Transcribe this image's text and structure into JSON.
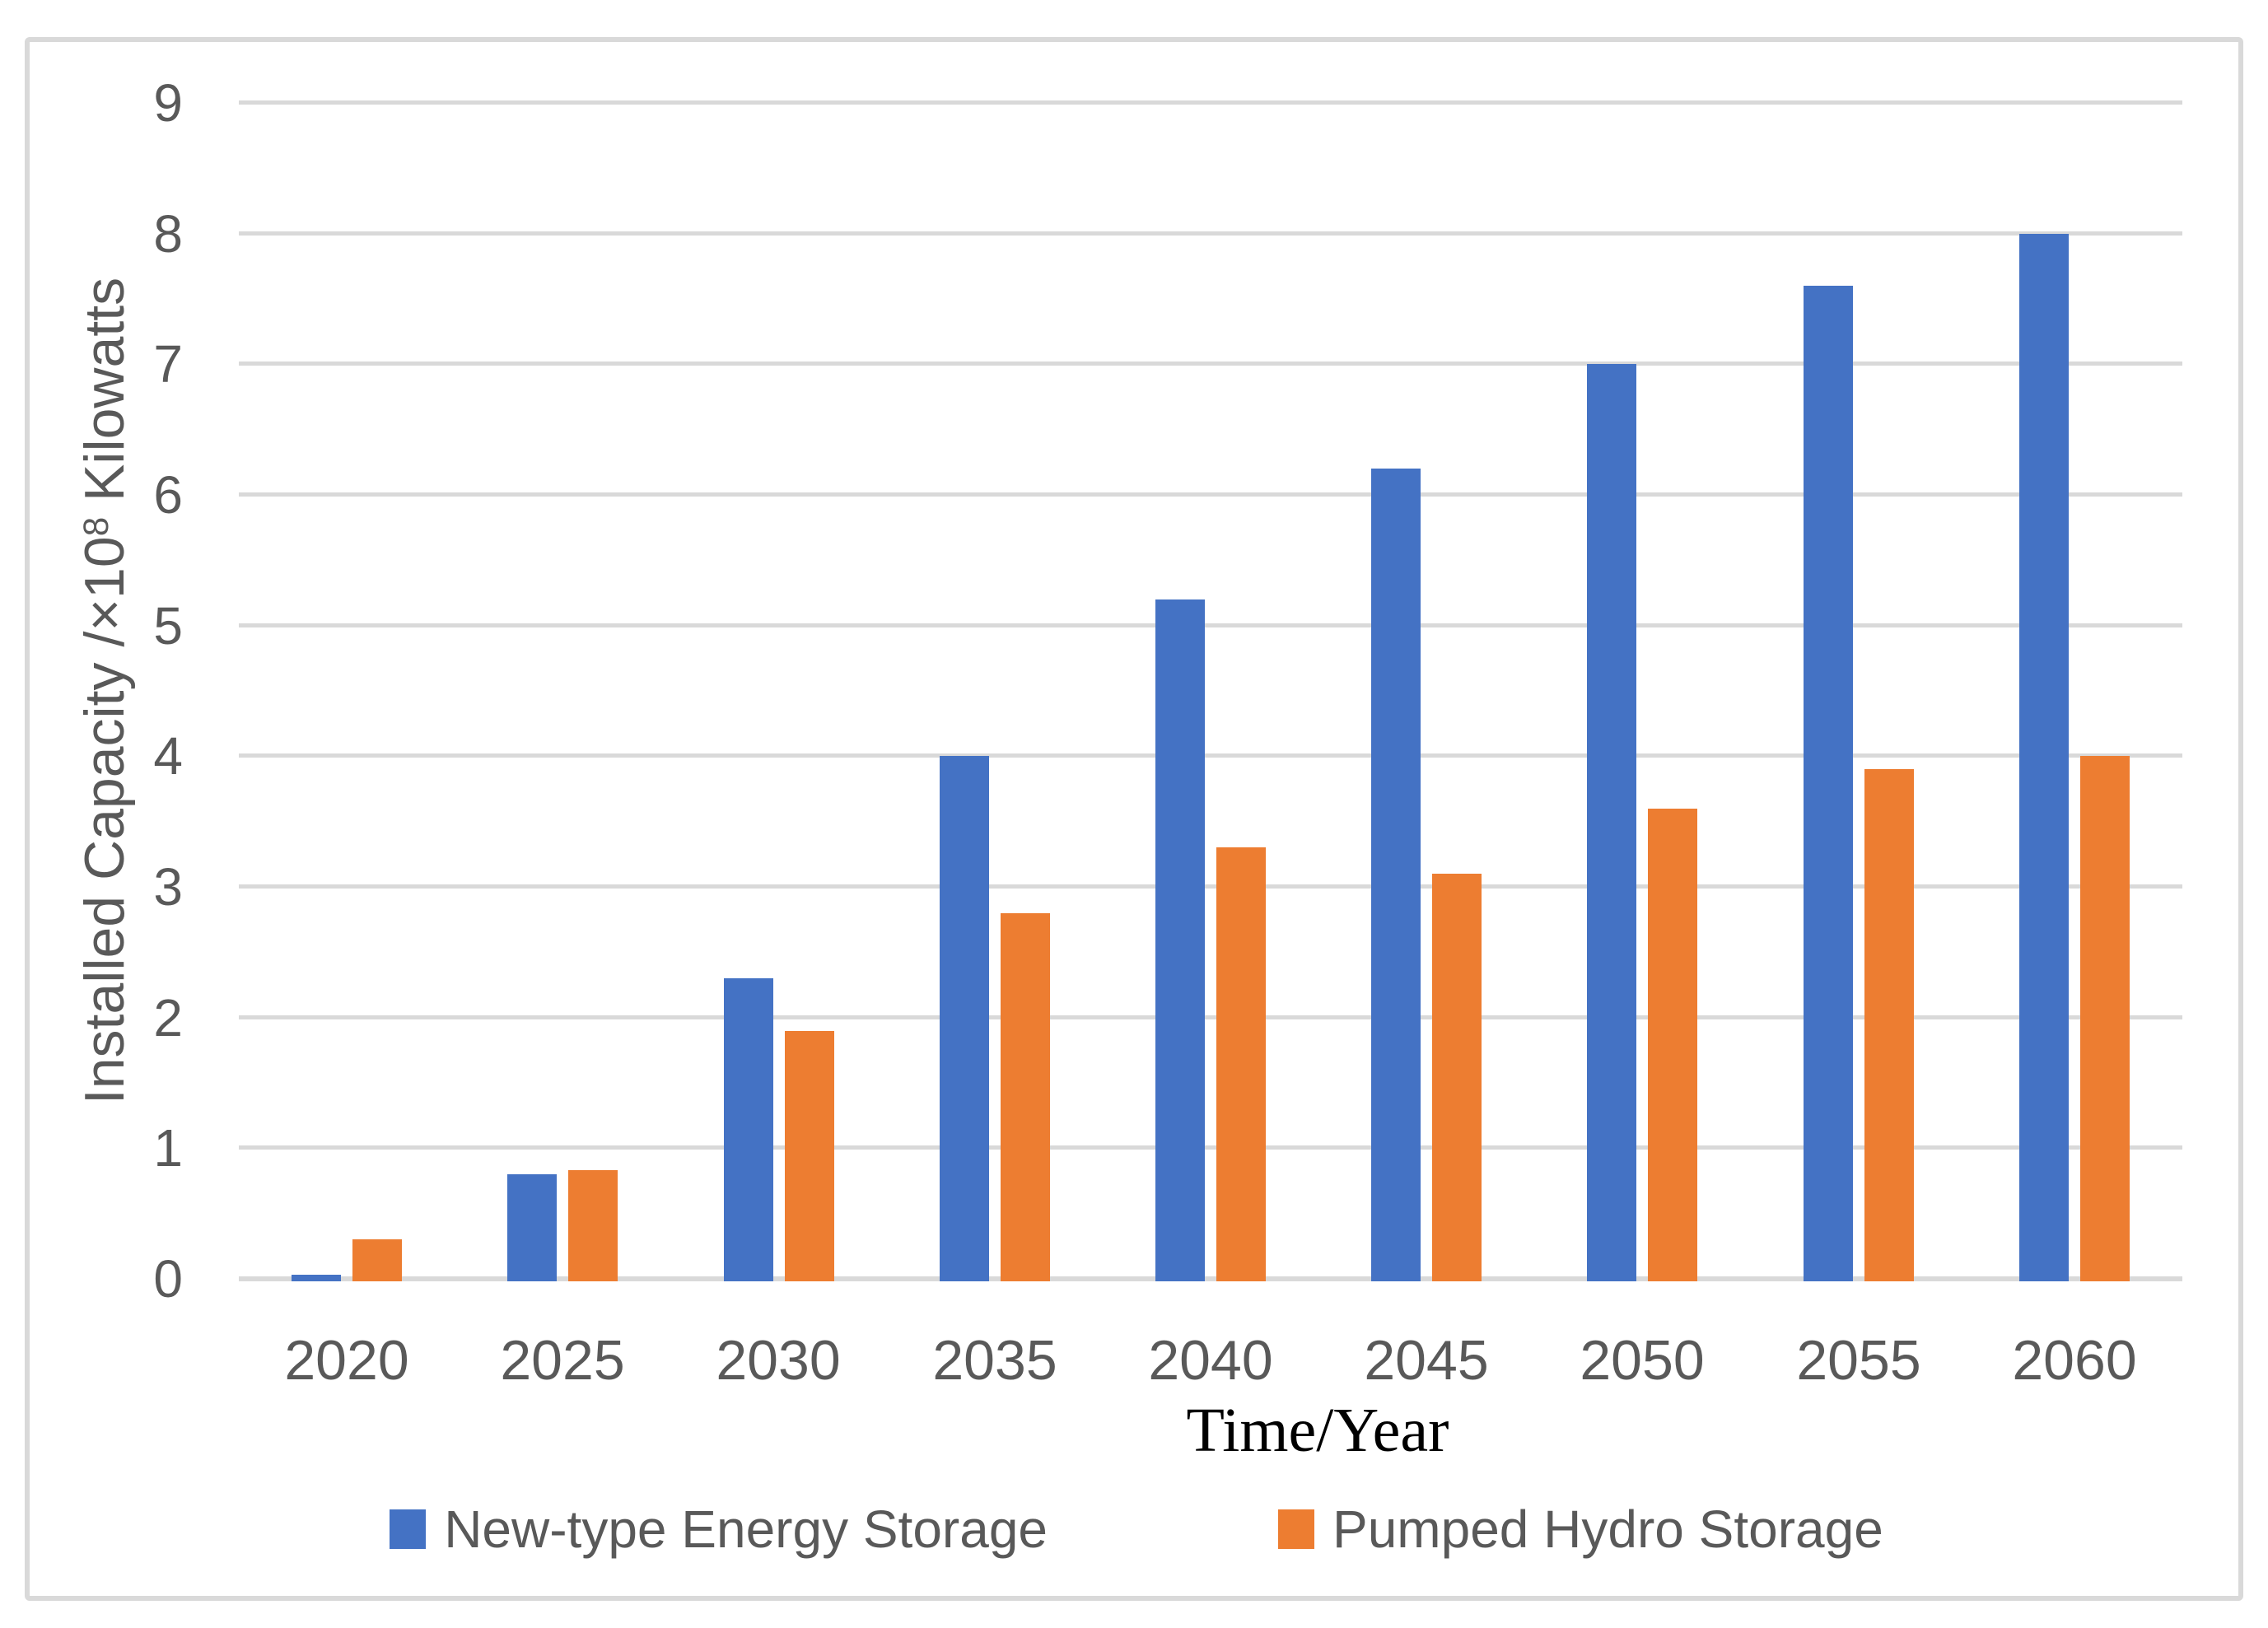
{
  "chart_data": {
    "type": "bar",
    "title": "",
    "categories": [
      "2020",
      "2025",
      "2030",
      "2035",
      "2040",
      "2045",
      "2050",
      "2055",
      "2060"
    ],
    "series": [
      {
        "name": "New-type Energy Storage",
        "color": "#4472C4",
        "values": [
          0.03,
          0.8,
          2.3,
          4.0,
          5.2,
          6.2,
          7.0,
          7.6,
          8.0
        ]
      },
      {
        "name": "Pumped Hydro Storage",
        "color": "#ED7D31",
        "values": [
          0.3,
          0.83,
          1.9,
          2.8,
          3.3,
          3.1,
          3.6,
          3.9,
          4.0
        ]
      }
    ],
    "xlabel": "Time/Year",
    "ylabel": "Installed Capacity /×10⁸ Kilowatts",
    "ylabel_parts": {
      "pre": "Installed Capacity /×10",
      "sup": "8",
      "post": " Kilowatts"
    },
    "ylim": [
      0,
      9
    ],
    "ytick_interval": 1,
    "yticks": [
      "0",
      "1",
      "2",
      "3",
      "4",
      "5",
      "6",
      "7",
      "8",
      "9"
    ],
    "grid": "horizontal",
    "legend_position": "bottom",
    "colors": {
      "gridline": "#D9D9D9",
      "frame_border": "#D9D9D9",
      "axis_text": "#595959",
      "x_title_text": "#000000",
      "background": "#FFFFFF"
    }
  }
}
